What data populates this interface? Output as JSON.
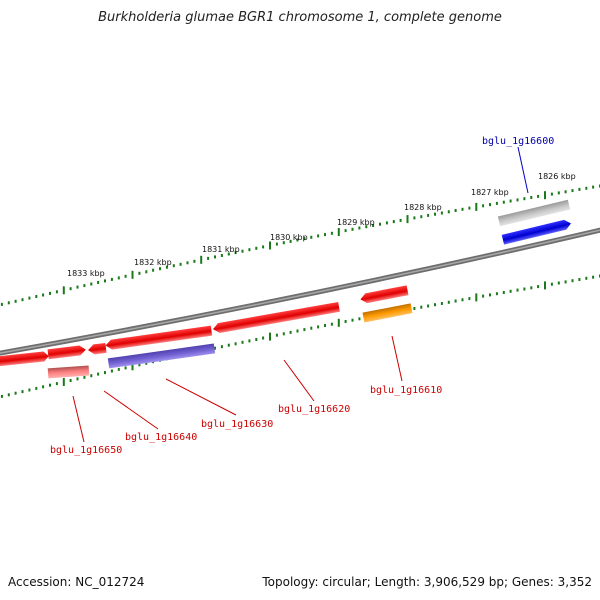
{
  "title": "Burkholderia glumae BGR1 chromosome 1, complete genome",
  "footer": {
    "accession": "Accession: NC_012724",
    "summary": "Topology: circular; Length: 3,906,529 bp; Genes: 3,352"
  },
  "colors": {
    "backbone": "#808080",
    "ticks": "#1a7a1a",
    "label_red": "#cc0000",
    "label_blue": "#0000aa"
  },
  "kbp_labels": [
    "1826 kbp",
    "1827 kbp",
    "1828 kbp",
    "1829 kbp",
    "1830 kbp",
    "1831 kbp",
    "1832 kbp",
    "1833 kbp"
  ],
  "genes": [
    {
      "label": "bglu_1g16600",
      "color": "#0000cc",
      "strand": "forward"
    },
    {
      "label": "bglu_1g16610",
      "color": "#cc0000",
      "strand": "reverse"
    },
    {
      "label": "bglu_1g16620",
      "color": "#cc0000",
      "strand": "reverse"
    },
    {
      "label": "bglu_1g16630",
      "color": "#cc0000",
      "strand": "reverse"
    },
    {
      "label": "bglu_1g16640",
      "color": "#cc0000",
      "strand": "reverse"
    },
    {
      "label": "bglu_1g16650",
      "color": "#cc0000",
      "strand": "forward"
    }
  ]
}
